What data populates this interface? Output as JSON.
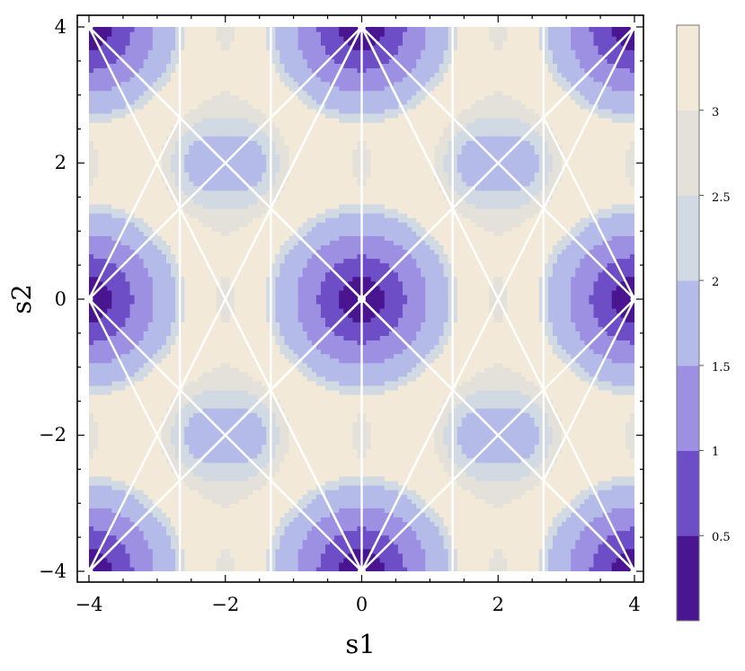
{
  "chart_data": {
    "type": "heatmap",
    "subtype": "filled-contour",
    "xlabel": "s1",
    "ylabel": "s2",
    "xlim": [
      -4,
      4
    ],
    "ylim": [
      -4,
      4
    ],
    "x_ticks": [
      -4,
      -2,
      0,
      2,
      4
    ],
    "y_ticks": [
      -4,
      -2,
      0,
      2,
      4
    ],
    "x_tick_labels": [
      "−4",
      "−2",
      "0",
      "2",
      "4"
    ],
    "y_tick_labels": [
      "−4",
      "−2",
      "0",
      "2",
      "4"
    ],
    "contour_levels": [
      0.5,
      1,
      1.5,
      2,
      2.5,
      3
    ],
    "colorbar": {
      "range": [
        0,
        3.5
      ],
      "tick_values": [
        0.5,
        1,
        1.5,
        2,
        2.5,
        3
      ],
      "tick_labels": [
        "0.5",
        "1",
        "1.5",
        "2",
        "2.5",
        "3"
      ],
      "bands": [
        {
          "from": 0.0,
          "to": 0.5,
          "color": "#4a1590"
        },
        {
          "from": 0.5,
          "to": 1.0,
          "color": "#6d4ec6"
        },
        {
          "from": 1.0,
          "to": 1.5,
          "color": "#9d90e2"
        },
        {
          "from": 1.5,
          "to": 2.0,
          "color": "#b4bbe9"
        },
        {
          "from": 2.0,
          "to": 2.5,
          "color": "#d1dae3"
        },
        {
          "from": 2.5,
          "to": 3.0,
          "color": "#e4e1da"
        },
        {
          "from": 3.0,
          "to": 3.5,
          "color": "#f3e9d8"
        }
      ]
    },
    "minima": [
      {
        "s1": -4,
        "s2": 4
      },
      {
        "s1": 0,
        "s2": 4
      },
      {
        "s1": 4,
        "s2": 4
      },
      {
        "s1": -4,
        "s2": 0
      },
      {
        "s1": 0,
        "s2": 0
      },
      {
        "s1": 4,
        "s2": 0
      },
      {
        "s1": -4,
        "s2": -4
      },
      {
        "s1": 0,
        "s2": -4
      },
      {
        "s1": 4,
        "s2": -4
      }
    ],
    "overlay_vertical_lines_s1": [
      -2.667,
      -1.333,
      0,
      1.333,
      2.667
    ],
    "overlay_segments": [
      [
        [
          -4,
          4
        ],
        [
          -2,
          0
        ]
      ],
      [
        [
          -2,
          0
        ],
        [
          -4,
          -4
        ]
      ],
      [
        [
          0,
          4
        ],
        [
          -2,
          0
        ]
      ],
      [
        [
          -2,
          0
        ],
        [
          0,
          -4
        ]
      ],
      [
        [
          0,
          4
        ],
        [
          2,
          0
        ]
      ],
      [
        [
          2,
          0
        ],
        [
          0,
          -4
        ]
      ],
      [
        [
          4,
          4
        ],
        [
          2,
          0
        ]
      ],
      [
        [
          2,
          0
        ],
        [
          4,
          -4
        ]
      ],
      [
        [
          -4,
          4
        ],
        [
          -2,
          2
        ]
      ],
      [
        [
          -2,
          2
        ],
        [
          0,
          0
        ]
      ],
      [
        [
          0,
          0
        ],
        [
          -2,
          -2
        ]
      ],
      [
        [
          -2,
          -2
        ],
        [
          -4,
          -4
        ]
      ],
      [
        [
          0,
          4
        ],
        [
          -2,
          2
        ]
      ],
      [
        [
          -2,
          2
        ],
        [
          -4,
          0
        ]
      ],
      [
        [
          -4,
          0
        ],
        [
          -2,
          -2
        ]
      ],
      [
        [
          -2,
          -2
        ],
        [
          0,
          -4
        ]
      ],
      [
        [
          0,
          4
        ],
        [
          2,
          2
        ]
      ],
      [
        [
          2,
          2
        ],
        [
          4,
          0
        ]
      ],
      [
        [
          4,
          0
        ],
        [
          2,
          -2
        ]
      ],
      [
        [
          2,
          -2
        ],
        [
          0,
          -4
        ]
      ],
      [
        [
          4,
          4
        ],
        [
          2,
          2
        ]
      ],
      [
        [
          2,
          2
        ],
        [
          0,
          0
        ]
      ],
      [
        [
          0,
          0
        ],
        [
          2,
          -2
        ]
      ],
      [
        [
          2,
          -2
        ],
        [
          4,
          -4
        ]
      ],
      [
        [
          -4,
          0
        ],
        [
          -2.667,
          -2.667
        ]
      ],
      [
        [
          -2.667,
          -2.667
        ],
        [
          -1.333,
          -1.333
        ]
      ],
      [
        [
          -1.333,
          -1.333
        ],
        [
          0,
          0
        ]
      ],
      [
        [
          -4,
          0
        ],
        [
          -2.667,
          2.667
        ]
      ],
      [
        [
          -2.667,
          2.667
        ],
        [
          -1.333,
          1.333
        ]
      ],
      [
        [
          -1.333,
          1.333
        ],
        [
          0,
          0
        ]
      ],
      [
        [
          0,
          0
        ],
        [
          1.333,
          1.333
        ]
      ],
      [
        [
          1.333,
          1.333
        ],
        [
          2.667,
          2.667
        ]
      ],
      [
        [
          2.667,
          2.667
        ],
        [
          4,
          0
        ]
      ],
      [
        [
          0,
          0
        ],
        [
          1.333,
          -1.333
        ]
      ],
      [
        [
          1.333,
          -1.333
        ],
        [
          2.667,
          -2.667
        ]
      ],
      [
        [
          2.667,
          -2.667
        ],
        [
          4,
          0
        ]
      ],
      [
        [
          -4,
          4
        ],
        [
          -2.667,
          2.667
        ]
      ],
      [
        [
          -4,
          -4
        ],
        [
          -2.667,
          -2.667
        ]
      ],
      [
        [
          4,
          4
        ],
        [
          2.667,
          2.667
        ]
      ],
      [
        [
          4,
          -4
        ],
        [
          2.667,
          -2.667
        ]
      ],
      [
        [
          0,
          4
        ],
        [
          -1.333,
          1.333
        ]
      ],
      [
        [
          0,
          4
        ],
        [
          1.333,
          1.333
        ]
      ],
      [
        [
          0,
          -4
        ],
        [
          -1.333,
          -1.333
        ]
      ],
      [
        [
          0,
          -4
        ],
        [
          1.333,
          -1.333
        ]
      ]
    ],
    "grid": false,
    "legend": "colorbar-right"
  }
}
